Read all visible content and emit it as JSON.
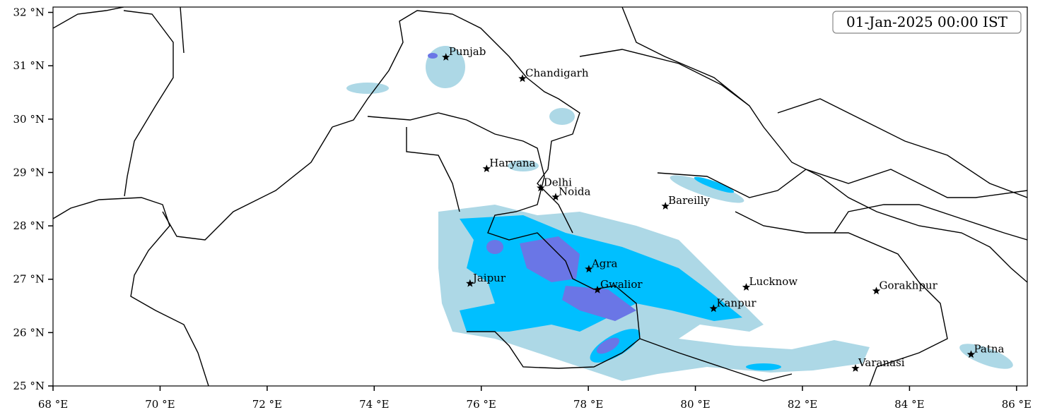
{
  "map": {
    "title": "01-Jan-2025 00:00 IST",
    "xlim": [
      68,
      86.2
    ],
    "ylim": [
      25,
      32.1
    ],
    "xticks": [
      {
        "value": 68,
        "label": "68 °E"
      },
      {
        "value": 70,
        "label": "70 °E"
      },
      {
        "value": 72,
        "label": "72 °E"
      },
      {
        "value": 74,
        "label": "74 °E"
      },
      {
        "value": 76,
        "label": "76 °E"
      },
      {
        "value": 78,
        "label": "78 °E"
      },
      {
        "value": 80,
        "label": "80 °E"
      },
      {
        "value": 82,
        "label": "82 °E"
      },
      {
        "value": 84,
        "label": "84 °E"
      },
      {
        "value": 86,
        "label": "86 °E"
      }
    ],
    "yticks": [
      {
        "value": 25,
        "label": "25 °N"
      },
      {
        "value": 26,
        "label": "26 °N"
      },
      {
        "value": 27,
        "label": "27 °N"
      },
      {
        "value": 28,
        "label": "28 °N"
      },
      {
        "value": 29,
        "label": "29 °N"
      },
      {
        "value": 30,
        "label": "30 °N"
      },
      {
        "value": 31,
        "label": "31 °N"
      },
      {
        "value": 32,
        "label": "32 °N"
      }
    ],
    "cities": [
      {
        "name": "Punjab",
        "lon": 75.34,
        "lat": 31.16
      },
      {
        "name": "Chandigarh",
        "lon": 76.77,
        "lat": 30.76
      },
      {
        "name": "Haryana",
        "lon": 76.1,
        "lat": 29.07
      },
      {
        "name": "Delhi",
        "lon": 77.11,
        "lat": 28.71
      },
      {
        "name": "Noida",
        "lon": 77.39,
        "lat": 28.54
      },
      {
        "name": "Bareilly",
        "lon": 79.44,
        "lat": 28.37
      },
      {
        "name": "Agra",
        "lon": 78.01,
        "lat": 27.19
      },
      {
        "name": "Jaipur",
        "lon": 75.79,
        "lat": 26.92
      },
      {
        "name": "Gwalior",
        "lon": 78.17,
        "lat": 26.8
      },
      {
        "name": "Lucknow",
        "lon": 80.95,
        "lat": 26.85
      },
      {
        "name": "Kanpur",
        "lon": 80.34,
        "lat": 26.45
      },
      {
        "name": "Gorakhpur",
        "lon": 83.38,
        "lat": 26.78
      },
      {
        "name": "Varanasi",
        "lon": 82.99,
        "lat": 25.33
      },
      {
        "name": "Patna",
        "lon": 85.15,
        "lat": 25.59
      }
    ]
  }
}
